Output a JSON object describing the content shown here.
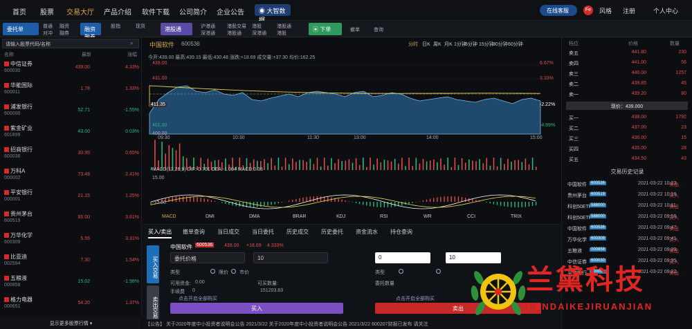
{
  "nav": {
    "items": [
      "首页",
      "股票",
      "交易大厅",
      "产品介绍",
      "软件下载",
      "公司简介",
      "企业公告"
    ],
    "active": "交易大厅",
    "data_label": "大智数据",
    "pill": "在线客服",
    "badge": "Fe",
    "right": [
      "风格",
      "注册",
      "个人中心"
    ]
  },
  "toolbar": {
    "buttons": [
      "委托单",
      "普通单",
      "新手交易",
      "融资融券",
      "全部交易"
    ],
    "a": [
      "普通",
      "对冲"
    ],
    "b": [
      "融资",
      "融券"
    ],
    "c": [
      "股指",
      "期指"
    ],
    "d": [
      "现货",
      "期权"
    ],
    "mid_label": "港股通",
    "m": [
      "沪港通",
      "深港通",
      "港股交易",
      "港股通",
      "港股",
      "深港通",
      "港股通",
      "港股"
    ],
    "green": "下单",
    "r1": "撤单",
    "r2": "查询"
  },
  "left": {
    "search_placeholder": "请输入股票代码/名称",
    "headers": [
      "名称",
      "最新",
      "涨幅"
    ],
    "rows": [
      {
        "name": "中信证券",
        "code": "600030",
        "price": "439.00",
        "pct": "4.33%",
        "color": "#e24a4a"
      },
      {
        "name": "华能国际",
        "code": "600011",
        "price": "1.78",
        "pct": "1.33%",
        "color": "#e24a4a"
      },
      {
        "name": "浦发银行",
        "code": "600000",
        "price": "52.71",
        "pct": "-1.55%",
        "color": "#27b87a"
      },
      {
        "name": "紫金矿业",
        "code": "601899",
        "price": "43.00",
        "pct": "0.03%",
        "color": "#27b87a"
      },
      {
        "name": "招商银行",
        "code": "600036",
        "price": "30.95",
        "pct": "0.65%",
        "color": "#e24a4a"
      },
      {
        "name": "万科A",
        "code": "000002",
        "price": "73.49",
        "pct": "2.41%",
        "color": "#e24a4a"
      },
      {
        "name": "平安银行",
        "code": "000001",
        "price": "21.15",
        "pct": "1.25%",
        "color": "#e24a4a"
      },
      {
        "name": "贵州茅台",
        "code": "600519",
        "price": "85.00",
        "pct": "3.81%",
        "color": "#e24a4a"
      },
      {
        "name": "万华化学",
        "code": "600309",
        "price": "5.55",
        "pct": "3.31%",
        "color": "#e24a4a"
      },
      {
        "name": "比亚迪",
        "code": "002594",
        "price": "7.30",
        "pct": "1.54%",
        "color": "#e24a4a"
      },
      {
        "name": "五粮液",
        "code": "000858",
        "price": "15.02",
        "pct": "-1.98%",
        "color": "#27b87a"
      },
      {
        "name": "格力电器",
        "code": "000651",
        "price": "54.20",
        "pct": "1.37%",
        "color": "#e24a4a"
      }
    ],
    "footer": "显示更多股票行情 ▾"
  },
  "chart": {
    "title": "中国软件",
    "code": "600536",
    "periods": [
      "分时",
      "日K",
      "周K",
      "月K",
      "1分钟",
      "5分钟",
      "15分钟",
      "30分钟",
      "60分钟"
    ],
    "info": "今开:439.00  最高:439.15  最低:430.48  涨跌:+18.69  成交量:+37.30  均价:162.25",
    "left_axis": [
      "439.00",
      "431.00",
      "411.35",
      "401.00",
      "400.00"
    ],
    "right_axis": [
      "6.67%",
      "3.33%",
      "-2.22%",
      "-4.99%"
    ],
    "times": [
      "09:30",
      "10:30",
      "11:30",
      "13:00",
      "14:00",
      "15:00"
    ],
    "macd_label": "MACD(12,26,9)  DIF:-0.701  DEA:-1.004  MACD:0.35",
    "indicators": [
      "MACD",
      "DMI",
      "DMA",
      "BRAR",
      "KDJ",
      "RSI",
      "WR",
      "CCI",
      "TRIX"
    ],
    "ylow": "-10.00",
    "yhigh": "15.00",
    "vol_ymax": "400.00"
  },
  "trade": {
    "tabs": [
      "买入/卖出",
      "撤单查询",
      "当日成交",
      "当日委托",
      "历史成交",
      "历史委托",
      "资金流水",
      "持仓查询"
    ],
    "side_buy": "买入交易",
    "side_sell": "卖出交易",
    "stock": "中国软件",
    "code": "600536",
    "price": "439.00",
    "change": "+18.69",
    "pct": "4.333%",
    "label_type": "类型",
    "label_price": "委托价格",
    "label_qty": "委托数量",
    "value_qty": "10",
    "value_price": "0",
    "value_qty2": "10",
    "r1": "限价",
    "r2": "市价",
    "avail": "可用资金:",
    "avail_v": "0.00",
    "max": "可买数量:",
    "max_v": "151203.83",
    "fee": "手续费",
    "fee_v": "0",
    "tip": "点击开启全部购买",
    "buy": "买入",
    "sell": "卖出"
  },
  "right": {
    "headers": [
      "档位",
      "价格",
      "数量"
    ],
    "asks": [
      {
        "l": "卖五",
        "p": "441.80",
        "v": "230"
      },
      {
        "l": "卖四",
        "p": "441.00",
        "v": "56"
      },
      {
        "l": "卖三",
        "p": "440.00",
        "v": "1257"
      },
      {
        "l": "卖二",
        "p": "439.85",
        "v": "45"
      },
      {
        "l": "卖一",
        "p": "439.20",
        "v": "80"
      }
    ],
    "mid": "现价：439.000",
    "bids": [
      {
        "l": "买一",
        "p": "438.00",
        "v": "1792"
      },
      {
        "l": "买二",
        "p": "437.00",
        "v": "23"
      },
      {
        "l": "买三",
        "p": "436.00",
        "v": "15"
      },
      {
        "l": "买四",
        "p": "435.00",
        "v": "28"
      },
      {
        "l": "买五",
        "p": "434.50",
        "v": "43"
      }
    ],
    "hist_title": "交易历史记录",
    "hist": [
      {
        "n": "中国软件",
        "c": "600536",
        "t": "2021-03-22 10:23",
        "s": "卖出"
      },
      {
        "n": "贵州茅台",
        "c": "600519",
        "t": "2021-03-22 10:18",
        "s": "买入"
      },
      {
        "n": "科创50ETF",
        "c": "588000",
        "t": "2021-03-22 10:11",
        "s": "卖出"
      },
      {
        "n": "科创50ETF",
        "c": "588000",
        "t": "2021-03-22 09:58",
        "s": "买入"
      },
      {
        "n": "中国软件",
        "c": "600536",
        "t": "2021-03-22 09:47",
        "s": "卖出"
      },
      {
        "n": "万华化学",
        "c": "600309",
        "t": "2021-03-22 09:41",
        "s": "买入"
      },
      {
        "n": "五粮液",
        "c": "000858",
        "t": "2021-03-22 09:39",
        "s": "卖出"
      },
      {
        "n": "中信证券",
        "c": "600030",
        "t": "2021-03-22 09:35",
        "s": "买入"
      },
      {
        "n": "平安银行",
        "c": "000001",
        "t": "2021-03-22 09:32",
        "s": "卖出"
      }
    ]
  },
  "ticker": "【公告】   关于2020年度中小投资者说明会公告   2021/3/22      关于2020年度中小投资者说明会公告   2021/3/22      600207财报已发布 请关注",
  "watermark": {
    "title": "兰黛科技",
    "sub": "LANDAIKEJIRUANJIAN"
  }
}
